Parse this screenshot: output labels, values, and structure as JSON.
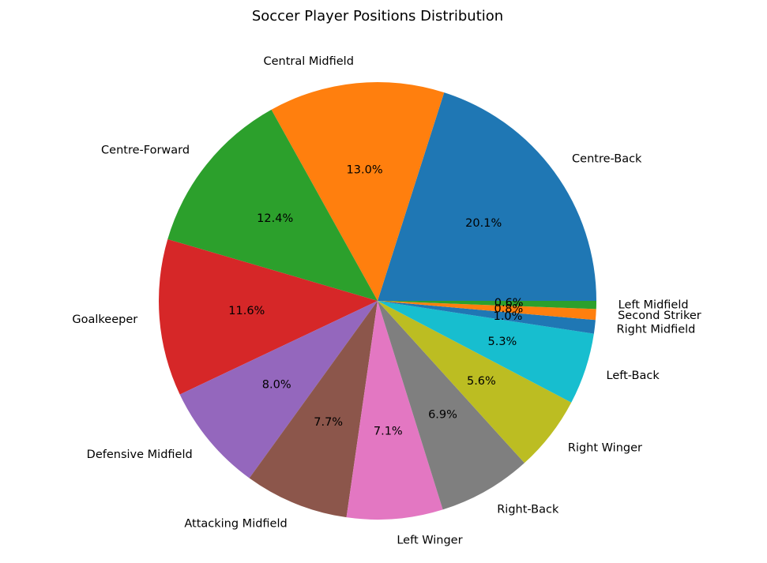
{
  "chart_data": {
    "type": "pie",
    "title": "Soccer Player Positions Distribution",
    "start_angle": 0,
    "direction": "counterclockwise",
    "slices": [
      {
        "label": "Centre-Back",
        "value": 20.1,
        "display": "20.1%",
        "color": "#1f77b4"
      },
      {
        "label": "Central Midfield",
        "value": 13.0,
        "display": "13.0%",
        "color": "#ff7f0e"
      },
      {
        "label": "Centre-Forward",
        "value": 12.4,
        "display": "12.4%",
        "color": "#2ca02c"
      },
      {
        "label": "Goalkeeper",
        "value": 11.6,
        "display": "11.6%",
        "color": "#d62728"
      },
      {
        "label": "Defensive Midfield",
        "value": 8.0,
        "display": "8.0%",
        "color": "#9467bd"
      },
      {
        "label": "Attacking Midfield",
        "value": 7.7,
        "display": "7.7%",
        "color": "#8c564b"
      },
      {
        "label": "Left Winger",
        "value": 7.1,
        "display": "7.1%",
        "color": "#e377c2"
      },
      {
        "label": "Right-Back",
        "value": 6.9,
        "display": "6.9%",
        "color": "#7f7f7f"
      },
      {
        "label": "Right Winger",
        "value": 5.6,
        "display": "5.6%",
        "color": "#bcbd22"
      },
      {
        "label": "Left-Back",
        "value": 5.3,
        "display": "5.3%",
        "color": "#17becf"
      },
      {
        "label": "Right Midfield",
        "value": 1.0,
        "display": "1.0%",
        "color": "#1f77b4"
      },
      {
        "label": "Second Striker",
        "value": 0.8,
        "display": "0.8%",
        "color": "#ff7f0e"
      },
      {
        "label": "Left Midfield",
        "value": 0.6,
        "display": "0.6%",
        "color": "#2ca02c"
      }
    ]
  }
}
